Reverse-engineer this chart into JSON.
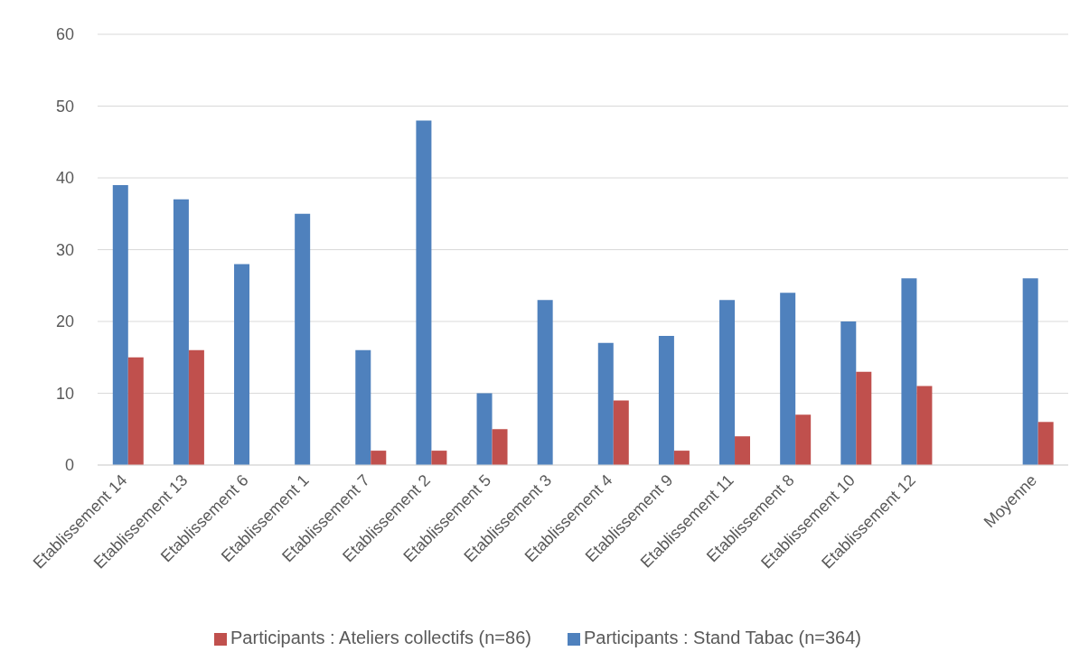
{
  "chart_data": {
    "type": "bar",
    "categories": [
      "Etablissement 14",
      "Etablissement 13",
      "Etablissement 6",
      "Etablissement 1",
      "Etablissement 7",
      "Etablissement 2",
      "Etablissement 5",
      "Etablissement 3",
      "Etablissement 4",
      "Etablissement 9",
      "Etablissement 11",
      "Etablissement 8",
      "Etablissement 10",
      "Etablissement 12",
      null,
      "Moyenne"
    ],
    "series": [
      {
        "name": "Participants : Stand Tabac (n=364)",
        "color": "#4f81bd",
        "values": [
          39,
          37,
          28,
          35,
          16,
          48,
          10,
          23,
          17,
          18,
          23,
          24,
          20,
          26,
          null,
          26
        ]
      },
      {
        "name": "Participants : Ateliers collectifs (n=86)",
        "color": "#c0504d",
        "values": [
          15,
          16,
          0,
          0,
          2,
          2,
          5,
          0,
          9,
          2,
          4,
          7,
          13,
          11,
          null,
          6
        ]
      }
    ],
    "ylim": [
      0,
      60
    ],
    "yticks": [
      0,
      10,
      20,
      30,
      40,
      50,
      60
    ],
    "grid": "y",
    "legend": "bottom"
  }
}
